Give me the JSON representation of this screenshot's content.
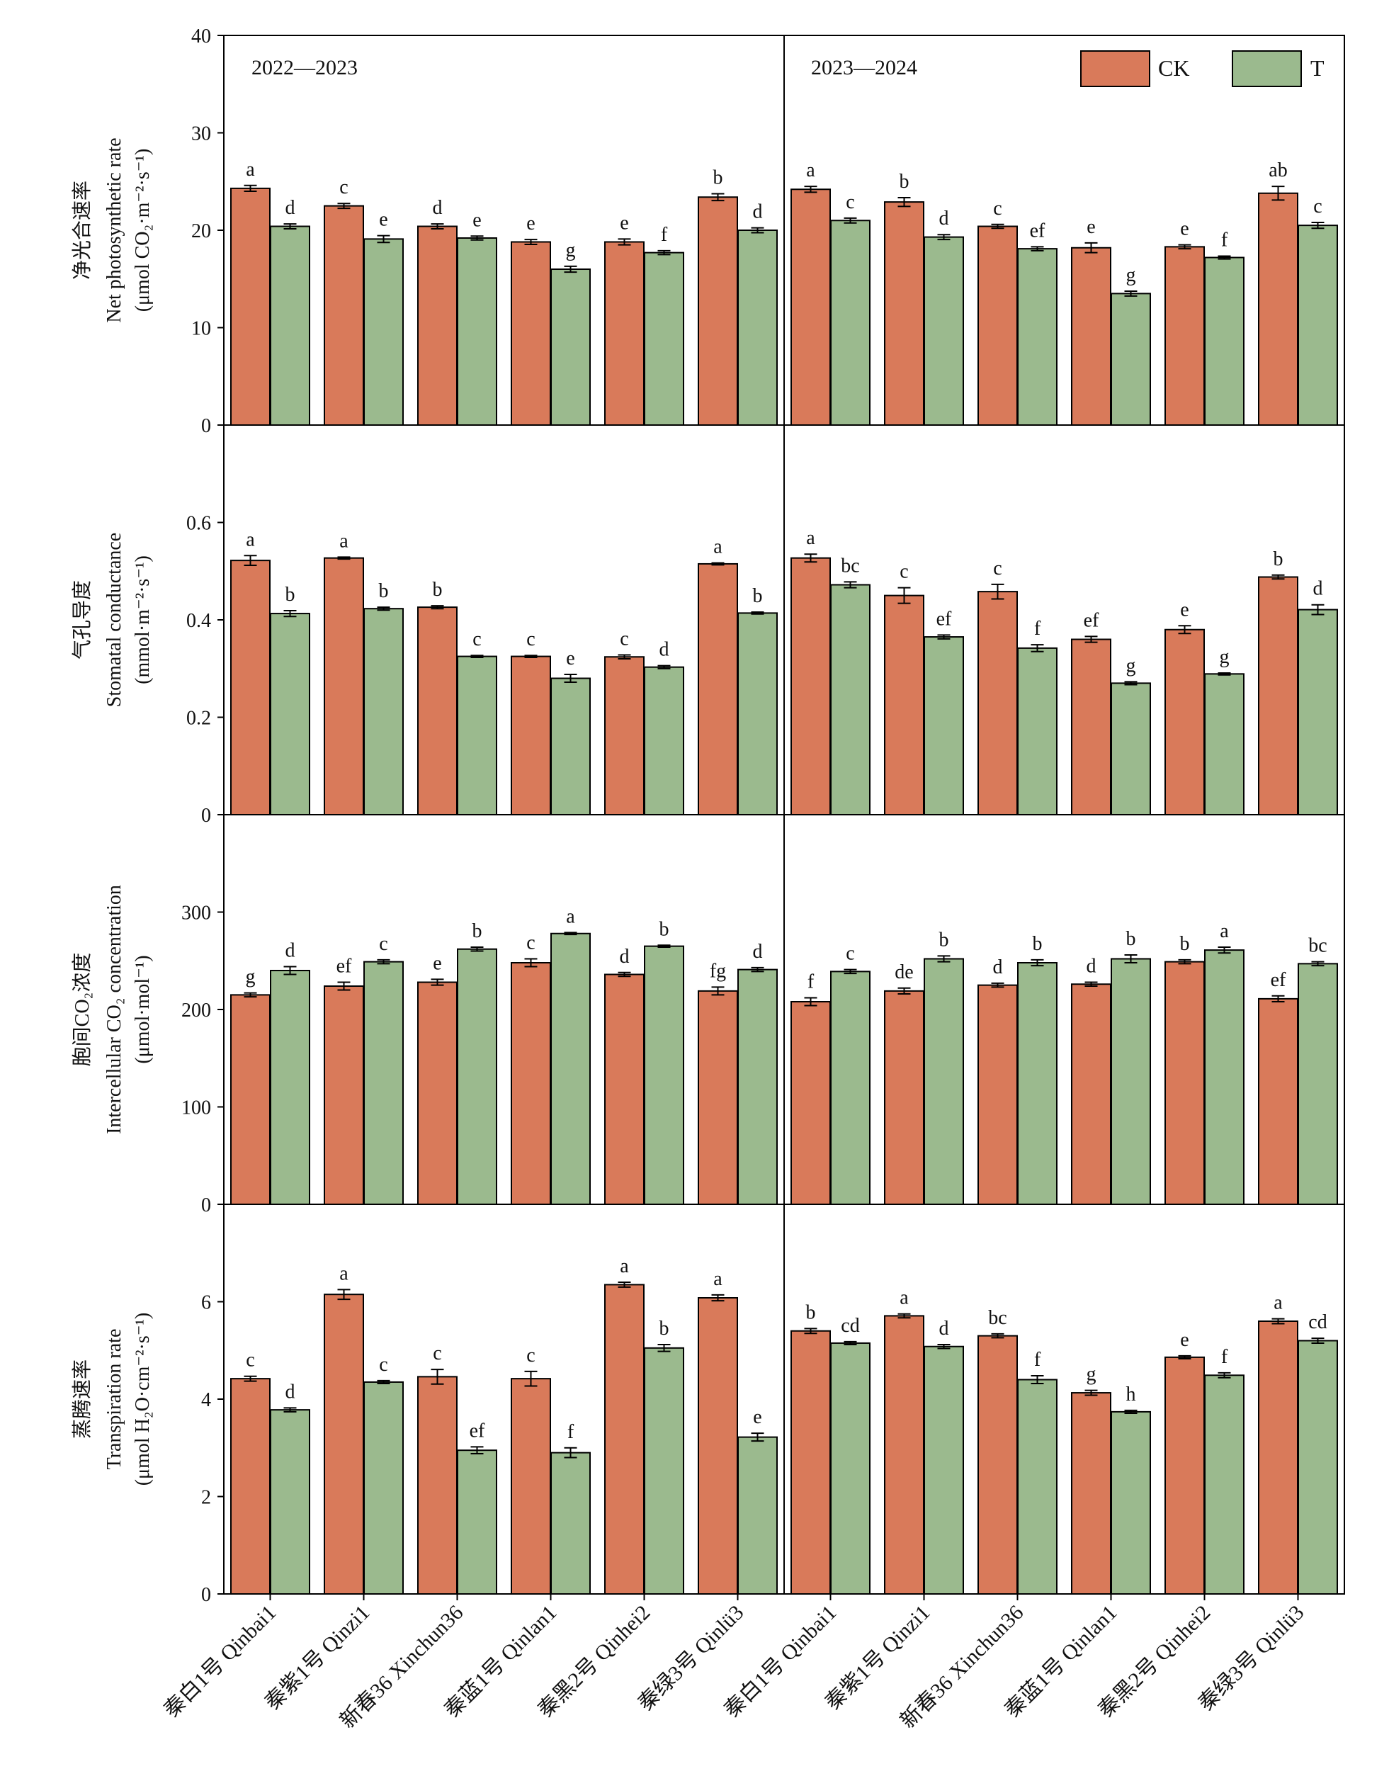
{
  "legend": {
    "ck_label": "CK",
    "t_label": "T"
  },
  "colors": {
    "CK": "#d97a5a",
    "T": "#9bba8e"
  },
  "periods": [
    "2022—2023",
    "2023—2024"
  ],
  "varieties": [
    "秦白1号 Qinbai1",
    "秦紫1号 Qinzi1",
    "新春36 Xinchun36",
    "秦蓝1号 Qinlan1",
    "秦黑2号 Qinhei2",
    "秦绿3号 Qinlü3"
  ],
  "chart_data": [
    {
      "type": "bar",
      "id": "pn",
      "ylabel": [
        "净光合速率",
        "Net photosynthetic rate",
        "(μmol CO₂·m⁻²·s⁻¹)"
      ],
      "ylim": [
        0,
        40
      ],
      "yticks": [
        0,
        10,
        20,
        30,
        40
      ],
      "tick_labels": [
        "0",
        "10",
        "20",
        "30",
        "40"
      ],
      "series": [
        {
          "name": "CK",
          "period": "2022—2023",
          "values": [
            24.3,
            22.5,
            20.4,
            18.8,
            18.8,
            23.4
          ],
          "errors": [
            0.3,
            0.25,
            0.25,
            0.25,
            0.3,
            0.35
          ],
          "letters": [
            "a",
            "c",
            "d",
            "e",
            "e",
            "b"
          ]
        },
        {
          "name": "T",
          "period": "2022—2023",
          "values": [
            20.4,
            19.1,
            19.2,
            16.0,
            17.7,
            20.0
          ],
          "errors": [
            0.25,
            0.35,
            0.2,
            0.3,
            0.2,
            0.25
          ],
          "letters": [
            "d",
            "e",
            "e",
            "g",
            "f",
            "d"
          ]
        },
        {
          "name": "CK",
          "period": "2023—2024",
          "values": [
            24.2,
            22.9,
            20.4,
            18.2,
            18.3,
            23.8
          ],
          "errors": [
            0.3,
            0.45,
            0.2,
            0.5,
            0.2,
            0.7
          ],
          "letters": [
            "a",
            "b",
            "c",
            "e",
            "e",
            "ab"
          ]
        },
        {
          "name": "T",
          "period": "2023—2024",
          "values": [
            21.0,
            19.3,
            18.1,
            13.5,
            17.2,
            20.5
          ],
          "errors": [
            0.25,
            0.25,
            0.2,
            0.25,
            0.15,
            0.3
          ],
          "letters": [
            "c",
            "d",
            "ef",
            "g",
            "f",
            "c"
          ]
        }
      ]
    },
    {
      "type": "bar",
      "id": "gs",
      "ylabel": [
        "气孔导度",
        "Stomatal conductance",
        "(mmol·m⁻²·s⁻¹)"
      ],
      "ylim": [
        0,
        0.8
      ],
      "yticks": [
        0,
        0.2,
        0.4,
        0.6
      ],
      "tick_labels": [
        "0",
        "0.2",
        "0.4",
        "0.6"
      ],
      "series": [
        {
          "name": "CK",
          "period": "2022—2023",
          "values": [
            0.522,
            0.527,
            0.426,
            0.325,
            0.324,
            0.515
          ],
          "errors": [
            0.01,
            0.002,
            0.003,
            0.002,
            0.004,
            0.002
          ],
          "letters": [
            "a",
            "a",
            "b",
            "c",
            "c",
            "a"
          ]
        },
        {
          "name": "T",
          "period": "2022—2023",
          "values": [
            0.413,
            0.423,
            0.325,
            0.28,
            0.303,
            0.414
          ],
          "errors": [
            0.006,
            0.003,
            0.002,
            0.008,
            0.003,
            0.002
          ],
          "letters": [
            "b",
            "b",
            "c",
            "e",
            "d",
            "b"
          ]
        },
        {
          "name": "CK",
          "period": "2023—2024",
          "values": [
            0.527,
            0.45,
            0.458,
            0.36,
            0.38,
            0.488
          ],
          "errors": [
            0.008,
            0.016,
            0.015,
            0.006,
            0.008,
            0.004
          ],
          "letters": [
            "a",
            "c",
            "c",
            "ef",
            "e",
            "b"
          ]
        },
        {
          "name": "T",
          "period": "2023—2024",
          "values": [
            0.472,
            0.365,
            0.342,
            0.27,
            0.289,
            0.421
          ],
          "errors": [
            0.006,
            0.004,
            0.007,
            0.003,
            0.002,
            0.01
          ],
          "letters": [
            "bc",
            "ef",
            "f",
            "g",
            "g",
            "d"
          ]
        }
      ]
    },
    {
      "type": "bar",
      "id": "ci",
      "ylabel": [
        "胞间CO₂浓度",
        "Intercellular CO₂ concentration",
        "(μmol·mol⁻¹)"
      ],
      "ylim": [
        0,
        400
      ],
      "yticks": [
        0,
        100,
        200,
        300
      ],
      "tick_labels": [
        "0",
        "100",
        "200",
        "300"
      ],
      "series": [
        {
          "name": "CK",
          "period": "2022—2023",
          "values": [
            215,
            224,
            228,
            248,
            236,
            219
          ],
          "errors": [
            2,
            4,
            3,
            4,
            2,
            4
          ],
          "letters": [
            "g",
            "ef",
            "e",
            "c",
            "d",
            "fg"
          ]
        },
        {
          "name": "T",
          "period": "2022—2023",
          "values": [
            240,
            249,
            262,
            278,
            265,
            241
          ],
          "errors": [
            4,
            2,
            2,
            1,
            1,
            2
          ],
          "letters": [
            "d",
            "c",
            "b",
            "a",
            "b",
            "d"
          ]
        },
        {
          "name": "CK",
          "period": "2023—2024",
          "values": [
            208,
            219,
            225,
            226,
            249,
            211
          ],
          "errors": [
            4,
            3,
            2,
            2,
            2,
            3
          ],
          "letters": [
            "f",
            "de",
            "d",
            "d",
            "b",
            "ef"
          ]
        },
        {
          "name": "T",
          "period": "2023—2024",
          "values": [
            239,
            252,
            248,
            252,
            261,
            247
          ],
          "errors": [
            2,
            3,
            3,
            4,
            3,
            2
          ],
          "letters": [
            "c",
            "b",
            "b",
            "b",
            "a",
            "bc"
          ]
        }
      ]
    },
    {
      "type": "bar",
      "id": "tr",
      "ylabel": [
        "蒸腾速率",
        "Transpiration rate",
        "(μmol H₂O·cm⁻²·s⁻¹)"
      ],
      "ylim": [
        0,
        8
      ],
      "yticks": [
        0,
        2,
        4,
        6
      ],
      "tick_labels": [
        "0",
        "2",
        "4",
        "6"
      ],
      "series": [
        {
          "name": "CK",
          "period": "2022—2023",
          "values": [
            4.42,
            6.15,
            4.46,
            4.42,
            6.35,
            6.08
          ],
          "errors": [
            0.05,
            0.1,
            0.15,
            0.15,
            0.05,
            0.06
          ],
          "letters": [
            "c",
            "a",
            "c",
            "c",
            "a",
            "a"
          ]
        },
        {
          "name": "T",
          "period": "2022—2023",
          "values": [
            3.78,
            4.35,
            2.95,
            2.9,
            5.05,
            3.22
          ],
          "errors": [
            0.04,
            0.03,
            0.07,
            0.1,
            0.07,
            0.08
          ],
          "letters": [
            "d",
            "c",
            "ef",
            "f",
            "b",
            "e"
          ]
        },
        {
          "name": "CK",
          "period": "2023—2024",
          "values": [
            5.4,
            5.71,
            5.3,
            4.13,
            4.86,
            5.6
          ],
          "errors": [
            0.05,
            0.04,
            0.04,
            0.05,
            0.03,
            0.05
          ],
          "letters": [
            "b",
            "a",
            "bc",
            "g",
            "e",
            "a"
          ]
        },
        {
          "name": "T",
          "period": "2023—2024",
          "values": [
            5.15,
            5.08,
            4.4,
            3.74,
            4.49,
            5.2
          ],
          "errors": [
            0.03,
            0.04,
            0.08,
            0.03,
            0.05,
            0.05
          ],
          "letters": [
            "cd",
            "d",
            "f",
            "h",
            "f",
            "cd"
          ]
        }
      ]
    }
  ]
}
